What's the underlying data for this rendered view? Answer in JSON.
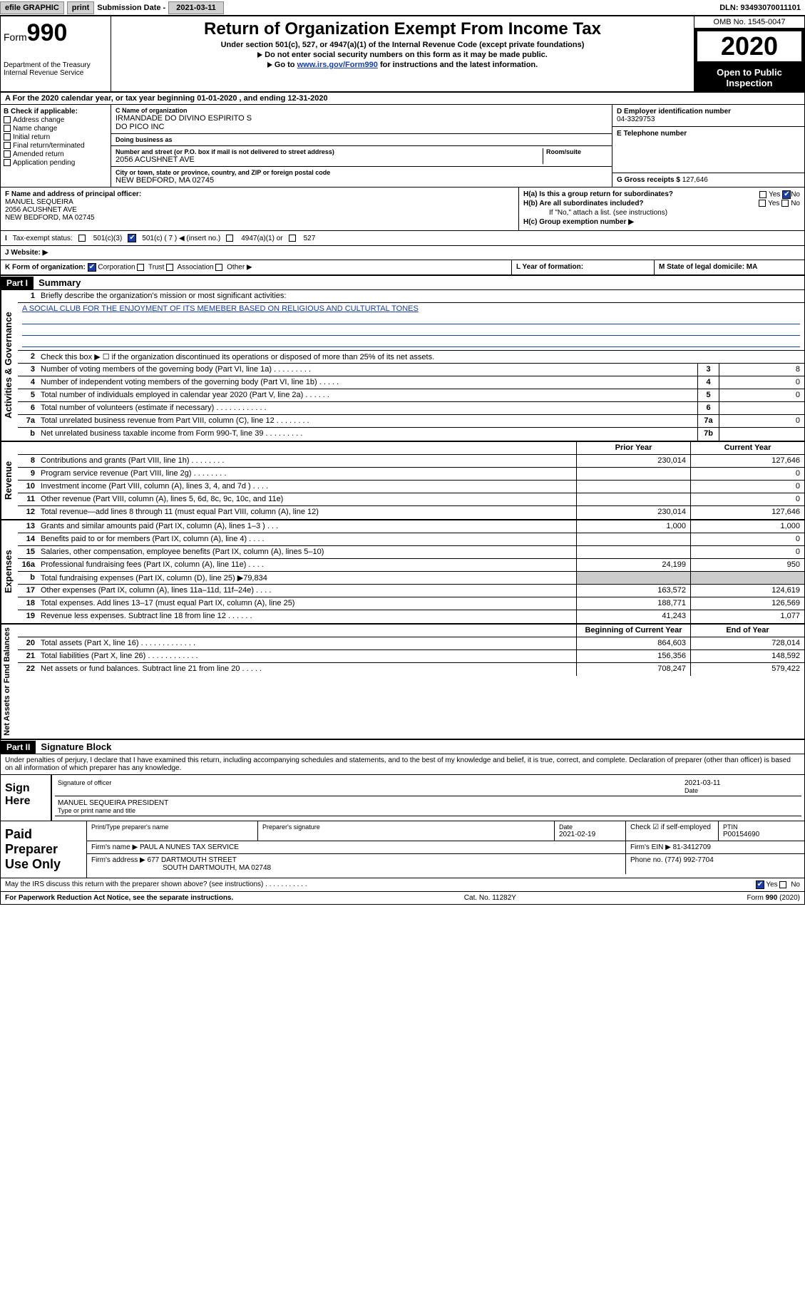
{
  "topbar": {
    "efile": "efile GRAPHIC",
    "print": "print",
    "subdate_label": "Submission Date - ",
    "subdate": "2021-03-11",
    "dln": "DLN: 93493070011101"
  },
  "header": {
    "form_label": "Form",
    "form_num": "990",
    "dept1": "Department of the Treasury",
    "dept2": "Internal Revenue Service",
    "title": "Return of Organization Exempt From Income Tax",
    "sub": "Under section 501(c), 527, or 4947(a)(1) of the Internal Revenue Code (except private foundations)",
    "line2": "Do not enter social security numbers on this form as it may be made public.",
    "line3_pre": "Go to ",
    "line3_link": "www.irs.gov/Form990",
    "line3_post": " for instructions and the latest information.",
    "omb": "OMB No. 1545-0047",
    "year": "2020",
    "open": "Open to Public Inspection"
  },
  "tyline": "For the 2020 calendar year, or tax year beginning 01-01-2020    , and ending 12-31-2020",
  "b": {
    "hdr": "B Check if applicable:",
    "opts": [
      "Address change",
      "Name change",
      "Initial return",
      "Final return/terminated",
      "Amended return",
      "Application pending"
    ]
  },
  "c": {
    "name_lbl": "C Name of organization",
    "name1": "IRMANDADE DO DIVINO ESPIRITO S",
    "name2": "DO PICO INC",
    "dba_lbl": "Doing business as",
    "addr_lbl": "Number and street (or P.O. box if mail is not delivered to street address)",
    "room_lbl": "Room/suite",
    "addr": "2056 ACUSHNET AVE",
    "city_lbl": "City or town, state or province, country, and ZIP or foreign postal code",
    "city": "NEW BEDFORD, MA  02745"
  },
  "d": {
    "lbl": "D Employer identification number",
    "val": "04-3329753"
  },
  "e": {
    "lbl": "E Telephone number",
    "val": ""
  },
  "g": {
    "lbl": "G Gross receipts $",
    "val": "127,646"
  },
  "f": {
    "lbl": "F Name and address of principal officer:",
    "name": "MANUEL SEQUEIRA",
    "addr": "2056 ACUSHNET AVE",
    "city": "NEW BEDFORD, MA  02745"
  },
  "h": {
    "a": "H(a)  Is this a group return for subordinates?",
    "b": "H(b)  Are all subordinates included?",
    "bnote": "If \"No,\" attach a list. (see instructions)",
    "c": "H(c)  Group exemption number ▶",
    "yes": "Yes",
    "no": "No"
  },
  "i": {
    "lbl": "Tax-exempt status:",
    "o1": "501(c)(3)",
    "o2": "501(c) ( 7 ) ◀ (insert no.)",
    "o3": "4947(a)(1) or",
    "o4": "527"
  },
  "j": {
    "lbl": "J   Website: ▶"
  },
  "k": {
    "lbl": "K Form of organization:",
    "corp": "Corporation",
    "trust": "Trust",
    "assoc": "Association",
    "other": "Other ▶"
  },
  "l": {
    "lbl": "L Year of formation:"
  },
  "m": {
    "lbl": "M State of legal domicile: MA"
  },
  "part1": {
    "hdr": "Part I",
    "title": "Summary",
    "q1": "Briefly describe the organization's mission or most significant activities:",
    "mission": "A SOCIAL CLUB FOR THE ENJOYMENT OF ITS MEMEBER BASED ON RELIGIOUS AND CULTURTAL TONES",
    "q2": "Check this box ▶ ☐  if the organization discontinued its operations or disposed of more than 25% of its net assets.",
    "rows_ag": [
      {
        "n": "3",
        "t": "Number of voting members of the governing body (Part VI, line 1a)  .   .   .   .   .   .   .   .   .",
        "b": "3",
        "v": "8"
      },
      {
        "n": "4",
        "t": "Number of independent voting members of the governing body (Part VI, line 1b)  .   .   .   .   .",
        "b": "4",
        "v": "0"
      },
      {
        "n": "5",
        "t": "Total number of individuals employed in calendar year 2020 (Part V, line 2a)  .   .   .   .   .   .",
        "b": "5",
        "v": "0"
      },
      {
        "n": "6",
        "t": "Total number of volunteers (estimate if necessary)  .   .   .   .   .   .   .   .   .   .   .   .",
        "b": "6",
        "v": ""
      },
      {
        "n": "7a",
        "t": "Total unrelated business revenue from Part VIII, column (C), line 12  .   .   .   .   .   .   .   .",
        "b": "7a",
        "v": "0"
      },
      {
        "n": "b",
        "t": "Net unrelated business taxable income from Form 990-T, line 39  .   .   .   .   .   .   .   .   .",
        "b": "7b",
        "v": ""
      }
    ],
    "py": "Prior Year",
    "cy": "Current Year",
    "rev_rows": [
      {
        "n": "8",
        "t": "Contributions and grants (Part VIII, line 1h)  .   .   .   .   .   .   .   .",
        "py": "230,014",
        "cy": "127,646"
      },
      {
        "n": "9",
        "t": "Program service revenue (Part VIII, line 2g)  .   .   .   .   .   .   .   .",
        "py": "",
        "cy": "0"
      },
      {
        "n": "10",
        "t": "Investment income (Part VIII, column (A), lines 3, 4, and 7d )  .   .   .   .",
        "py": "",
        "cy": "0"
      },
      {
        "n": "11",
        "t": "Other revenue (Part VIII, column (A), lines 5, 6d, 8c, 9c, 10c, and 11e)",
        "py": "",
        "cy": "0"
      },
      {
        "n": "12",
        "t": "Total revenue—add lines 8 through 11 (must equal Part VIII, column (A), line 12)",
        "py": "230,014",
        "cy": "127,646"
      }
    ],
    "exp_rows": [
      {
        "n": "13",
        "t": "Grants and similar amounts paid (Part IX, column (A), lines 1–3 )  .   .   .",
        "py": "1,000",
        "cy": "1,000"
      },
      {
        "n": "14",
        "t": "Benefits paid to or for members (Part IX, column (A), line 4)  .   .   .   .",
        "py": "",
        "cy": "0"
      },
      {
        "n": "15",
        "t": "Salaries, other compensation, employee benefits (Part IX, column (A), lines 5–10)",
        "py": "",
        "cy": "0"
      },
      {
        "n": "16a",
        "t": "Professional fundraising fees (Part IX, column (A), line 11e)  .   .   .   .",
        "py": "24,199",
        "cy": "950"
      },
      {
        "n": "b",
        "t": "Total fundraising expenses (Part IX, column (D), line 25) ▶79,834",
        "py": "—",
        "cy": "—"
      },
      {
        "n": "17",
        "t": "Other expenses (Part IX, column (A), lines 11a–11d, 11f–24e)  .   .   .   .",
        "py": "163,572",
        "cy": "124,619"
      },
      {
        "n": "18",
        "t": "Total expenses. Add lines 13–17 (must equal Part IX, column (A), line 25)",
        "py": "188,771",
        "cy": "126,569"
      },
      {
        "n": "19",
        "t": "Revenue less expenses. Subtract line 18 from line 12  .   .   .   .   .   .",
        "py": "41,243",
        "cy": "1,077"
      }
    ],
    "boy": "Beginning of Current Year",
    "eoy": "End of Year",
    "na_rows": [
      {
        "n": "20",
        "t": "Total assets (Part X, line 16)  .   .   .   .   .   .   .   .   .   .   .   .   .",
        "py": "864,603",
        "cy": "728,014"
      },
      {
        "n": "21",
        "t": "Total liabilities (Part X, line 26)  .   .   .   .   .   .   .   .   .   .   .   .",
        "py": "156,356",
        "cy": "148,592"
      },
      {
        "n": "22",
        "t": "Net assets or fund balances. Subtract line 21 from line 20  .   .   .   .   .",
        "py": "708,247",
        "cy": "579,422"
      }
    ]
  },
  "part2": {
    "hdr": "Part II",
    "title": "Signature Block",
    "decl": "Under penalties of perjury, I declare that I have examined this return, including accompanying schedules and statements, and to the best of my knowledge and belief, it is true, correct, and complete. Declaration of preparer (other than officer) is based on all information of which preparer has any knowledge."
  },
  "sign": {
    "label": "Sign Here",
    "sig_of": "Signature of officer",
    "date": "2021-03-11",
    "date_lbl": "Date",
    "name": "MANUEL SEQUEIRA  PRESIDENT",
    "name_lbl": "Type or print name and title"
  },
  "prep": {
    "label": "Paid Preparer Use Only",
    "r1": {
      "c1": "Print/Type preparer's name",
      "c2": "Preparer's signature",
      "c3l": "Date",
      "c3": "2021-02-19",
      "c4": "Check ☑ if self-employed",
      "c5l": "PTIN",
      "c5": "P00154690"
    },
    "r2": {
      "c1": "Firm's name      ▶ PAUL A NUNES TAX SERVICE",
      "c2": "Firm's EIN ▶ 81-3412709"
    },
    "r3": {
      "c1": "Firm's address ▶ 677 DARTMOUTH STREET",
      "c2": "Phone no. (774) 992-7704"
    },
    "r3b": "SOUTH DARTMOUTH, MA  02748"
  },
  "discuss": {
    "txt": "May the IRS discuss this return with the preparer shown above? (see instructions)  .   .   .   .   .   .   .   .   .   .   .",
    "yes": "Yes",
    "no": "No"
  },
  "footer": {
    "left": "For Paperwork Reduction Act Notice, see the separate instructions.",
    "mid": "Cat. No. 11282Y",
    "right": "Form 990 (2020)"
  },
  "side_labels": {
    "ag": "Activities & Governance",
    "rev": "Revenue",
    "exp": "Expenses",
    "na": "Net Assets or Fund Balances"
  }
}
